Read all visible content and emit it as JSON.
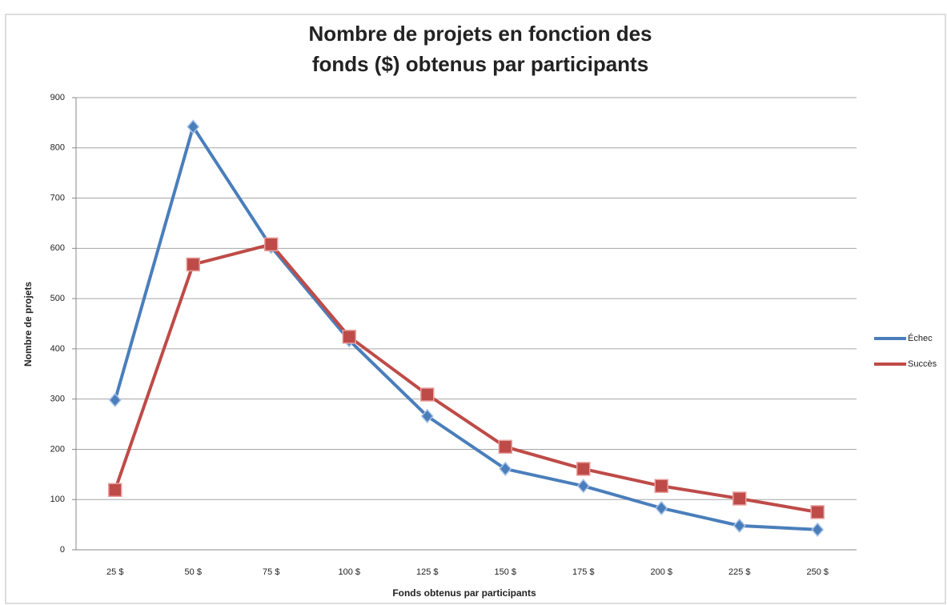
{
  "chart_data": {
    "type": "line",
    "title": [
      "Nombre de projets en fonction des",
      "fonds ($) obtenus par participants"
    ],
    "x_label": "Fonds obtenus par participants",
    "y_label": "Nombre de projets",
    "categories": [
      "25 $",
      "50 $",
      "75 $",
      "100 $",
      "125 $",
      "150 $",
      "175 $",
      "200 $",
      "225 $",
      "250 $"
    ],
    "series": [
      {
        "name": "Échec",
        "color": "#4a7ebb",
        "marker": "diamond",
        "values": [
          298,
          842,
          603,
          417,
          266,
          161,
          127,
          83,
          48,
          40
        ]
      },
      {
        "name": "Succès",
        "color": "#be4b48",
        "marker": "square",
        "values": [
          119,
          568,
          608,
          424,
          309,
          205,
          161,
          127,
          102,
          75
        ]
      }
    ],
    "ylim": [
      0,
      900
    ],
    "yticks": [
      0,
      100,
      200,
      300,
      400,
      500,
      600,
      700,
      800,
      900
    ],
    "grid": true,
    "legend": "right"
  }
}
